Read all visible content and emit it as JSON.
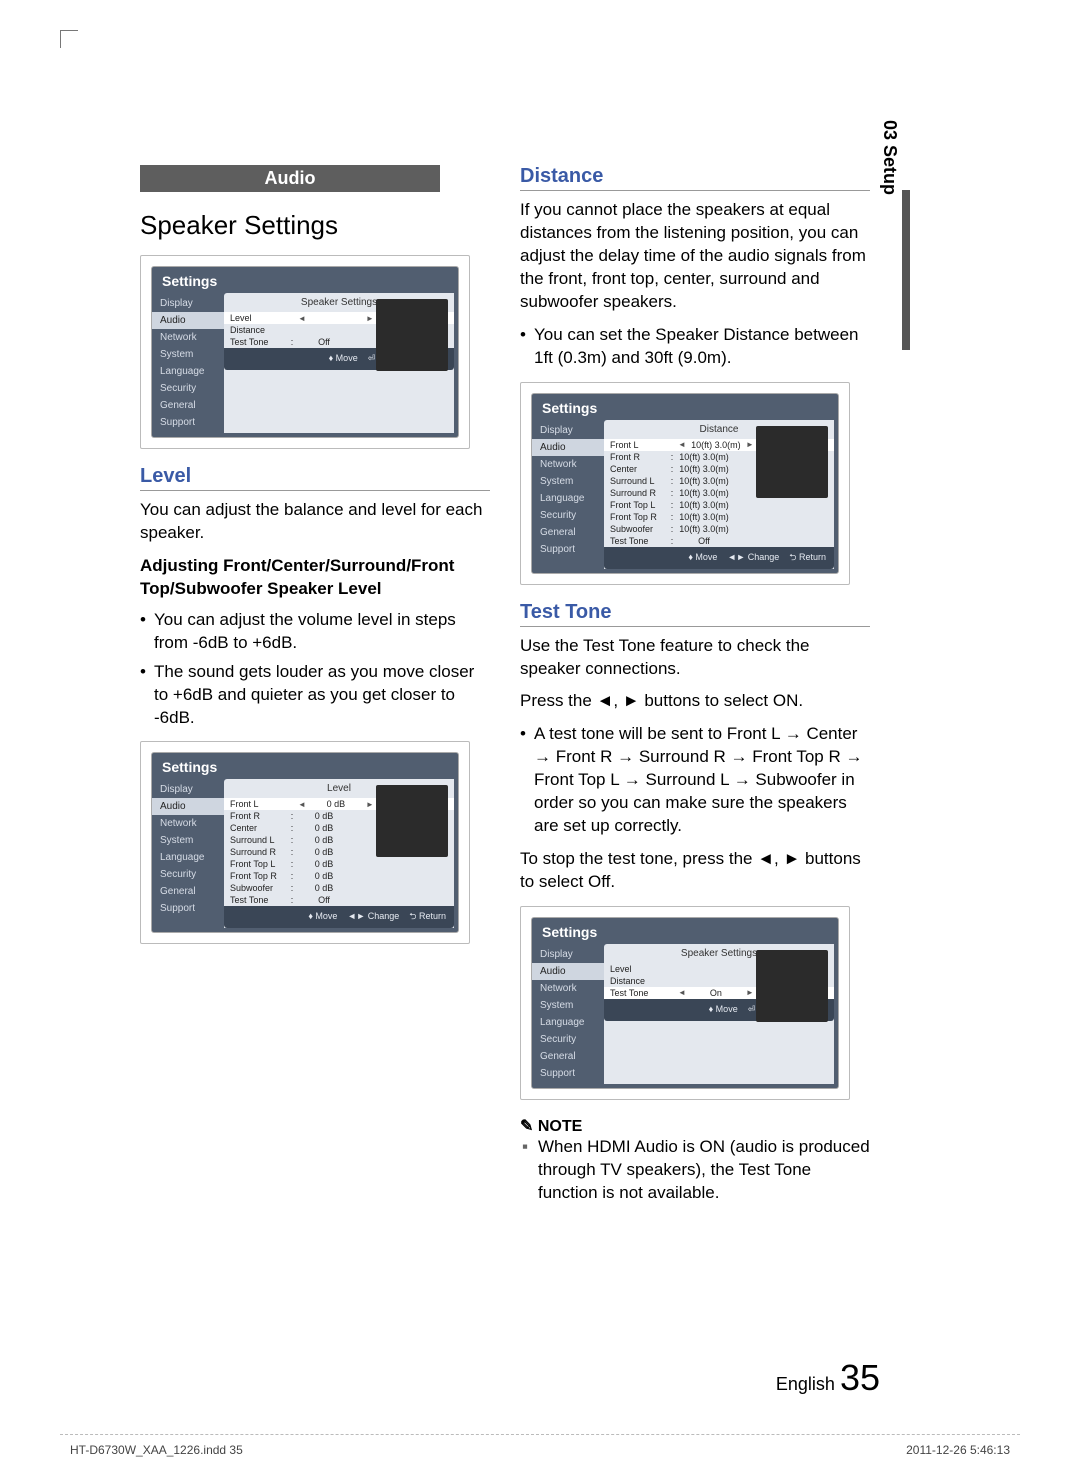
{
  "sideTab": "03  Setup",
  "audioHeader": "Audio",
  "speakerSettingsTitle": "Speaker Settings",
  "levelHeader": "Level",
  "levelText": "You can adjust the balance and level for each speaker.",
  "levelSubBold": "Adjusting Front/Center/Surround/Front Top/Subwoofer Speaker Level",
  "levelBul1": "You can adjust the volume level in steps from -6dB to +6dB.",
  "levelBul2": "The sound gets louder as you move closer to +6dB and quieter as you get closer to -6dB.",
  "distanceHeader": "Distance",
  "distanceText": "If you cannot place the speakers at equal distances from the listening position, you can adjust the delay time of the audio signals from the front, front top, center, surround and subwoofer speakers.",
  "distanceBul1": "You can set the Speaker Distance between 1ft (0.3m) and 30ft (9.0m).",
  "testToneHeader": "Test Tone",
  "testToneText": "Use the Test Tone feature to check the speaker connections.",
  "testTonePress": "Press the ◄, ► buttons to select ON.",
  "testToneBul": "A test tone will be sent to Front L → Center → Front R → Surround R → Front Top R → Front Top L → Surround L → Subwoofer in order so you can make sure the speakers are set up correctly.",
  "testToneStop": "To stop the test tone, press the ◄, ► buttons to select Off.",
  "noteHeader": "NOTE",
  "noteBul": "When HDMI Audio is ON (audio is produced through TV speakers), the Test Tone function is not available.",
  "pageLang": "English",
  "pageNum": "35",
  "footLeft": "HT-D6730W_XAA_1226.indd   35",
  "footRight": "2011-12-26    5:46:13",
  "nav": {
    "items": [
      "Display",
      "Audio",
      "Network",
      "System",
      "Language",
      "Security",
      "General",
      "Support"
    ]
  },
  "shot1": {
    "title": "Settings",
    "panelTitle": "Speaker Settings",
    "rows": [
      {
        "lab": "Level",
        "val": "",
        "arr": true,
        "active": true
      },
      {
        "lab": "Distance",
        "val": ""
      },
      {
        "lab": "Test Tone",
        "col": ":",
        "val": "Off"
      }
    ],
    "foot": [
      "♦ Move",
      "⏎ Enter",
      "⮌ Return"
    ]
  },
  "shot2": {
    "title": "Settings",
    "panelTitle": "Level",
    "rows": [
      {
        "lab": "Front L",
        "val": "0 dB",
        "arr": true,
        "active": true
      },
      {
        "lab": "Front R",
        "col": ":",
        "val": "0 dB"
      },
      {
        "lab": "Center",
        "col": ":",
        "val": "0 dB"
      },
      {
        "lab": "Surround L",
        "col": ":",
        "val": "0 dB"
      },
      {
        "lab": "Surround R",
        "col": ":",
        "val": "0 dB"
      },
      {
        "lab": "Front Top L",
        "col": ":",
        "val": "0 dB"
      },
      {
        "lab": "Front Top R",
        "col": ":",
        "val": "0 dB"
      },
      {
        "lab": "Subwoofer",
        "col": ":",
        "val": "0 dB"
      },
      {
        "lab": "Test Tone",
        "col": ":",
        "val": "Off"
      }
    ],
    "foot": [
      "♦ Move",
      "◄► Change",
      "⮌ Return"
    ]
  },
  "shot3": {
    "title": "Settings",
    "panelTitle": "Distance",
    "rows": [
      {
        "lab": "Front L",
        "val": "10(ft) 3.0(m)",
        "arr": true,
        "active": true
      },
      {
        "lab": "Front R",
        "col": ":",
        "val": "10(ft) 3.0(m)"
      },
      {
        "lab": "Center",
        "col": ":",
        "val": "10(ft) 3.0(m)"
      },
      {
        "lab": "Surround L",
        "col": ":",
        "val": "10(ft) 3.0(m)"
      },
      {
        "lab": "Surround R",
        "col": ":",
        "val": "10(ft) 3.0(m)"
      },
      {
        "lab": "Front Top L",
        "col": ":",
        "val": "10(ft) 3.0(m)"
      },
      {
        "lab": "Front Top R",
        "col": ":",
        "val": "10(ft) 3.0(m)"
      },
      {
        "lab": "Subwoofer",
        "col": ":",
        "val": "10(ft) 3.0(m)"
      },
      {
        "lab": "Test Tone",
        "col": ":",
        "val": "Off"
      }
    ],
    "foot": [
      "♦ Move",
      "◄► Change",
      "⮌ Return"
    ]
  },
  "shot4": {
    "title": "Settings",
    "panelTitle": "Speaker Settings",
    "rows": [
      {
        "lab": "Level",
        "val": ""
      },
      {
        "lab": "Distance",
        "val": ""
      },
      {
        "lab": "Test Tone",
        "val": "On",
        "arr": true,
        "active": true
      }
    ],
    "foot": [
      "♦ Move",
      "⏎ Enter",
      "⮌ Return"
    ]
  }
}
